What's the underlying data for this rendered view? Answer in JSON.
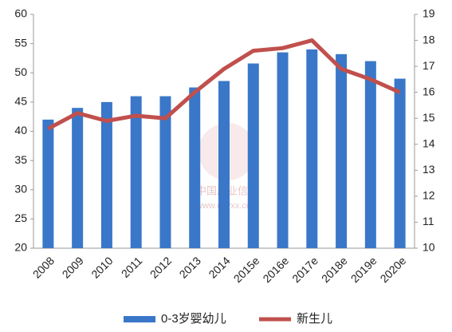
{
  "chart_data": {
    "type": "bar-line",
    "categories": [
      "2008",
      "2009",
      "2010",
      "2011",
      "2012",
      "2013",
      "2014",
      "2015e",
      "2016e",
      "2017e",
      "2018e",
      "2019e",
      "2020e"
    ],
    "series": [
      {
        "name": "0-3岁婴幼儿",
        "color": "#3a77c8",
        "type": "bar",
        "values": [
          42,
          44,
          45,
          46,
          46,
          47.5,
          48.6,
          51.6,
          53.5,
          54,
          53.2,
          52,
          49
        ]
      },
      {
        "name": "新生儿",
        "color": "#c0504d",
        "type": "line",
        "axis": "y2",
        "values": [
          14.6,
          15.2,
          14.9,
          15.1,
          15.0,
          16.0,
          16.9,
          17.6,
          17.7,
          18.0,
          16.9,
          16.5,
          16.0
        ]
      }
    ],
    "ylim": [
      20,
      60
    ],
    "yticks": [
      20,
      25,
      30,
      35,
      40,
      45,
      50,
      55,
      60
    ],
    "y2lim": [
      10,
      19
    ],
    "y2ticks": [
      10,
      11,
      12,
      13,
      14,
      15,
      16,
      17,
      18,
      19
    ],
    "watermark": [
      "中国产业信息",
      "www.chyxx.com"
    ]
  }
}
